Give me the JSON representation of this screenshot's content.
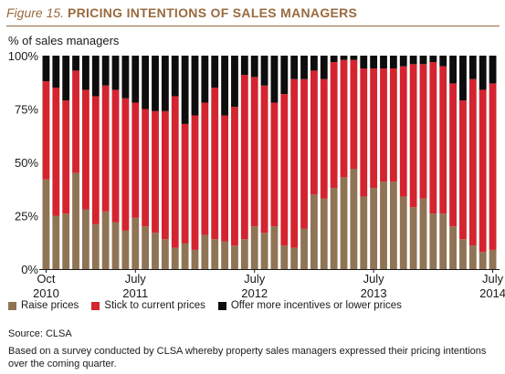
{
  "figure": {
    "number": "Figure 15.",
    "title": "PRICING INTENTIONS OF SALES MANAGERS"
  },
  "colors": {
    "title": "#9a6a3f",
    "raise": "#8f7455",
    "stick": "#d4242f",
    "offer": "#0d0d0d"
  },
  "chart_data": {
    "type": "bar",
    "stacked": true,
    "ylabel": "% of sales managers",
    "ylim": [
      0,
      100
    ],
    "yticks": [
      "0%",
      "25%",
      "50%",
      "75%",
      "100%"
    ],
    "x_labels": [
      {
        "index": 0,
        "month": "Oct",
        "year": "2010"
      },
      {
        "index": 9,
        "month": "July",
        "year": "2011"
      },
      {
        "index": 21,
        "month": "July",
        "year": "2012"
      },
      {
        "index": 33,
        "month": "July",
        "year": "2013"
      },
      {
        "index": 45,
        "month": "July",
        "year": "2014"
      }
    ],
    "series": [
      {
        "name": "Raise prices",
        "color": "#8f7455",
        "values": [
          42,
          25,
          26,
          45,
          28,
          21,
          27,
          22,
          18,
          24,
          20,
          17,
          14,
          10,
          12,
          9,
          16,
          14,
          13,
          11,
          14,
          20,
          17,
          20,
          11,
          10,
          19,
          35,
          33,
          38,
          43,
          47,
          34,
          38,
          41,
          41,
          34,
          29,
          33,
          26,
          26,
          20,
          14,
          11,
          8,
          9
        ]
      },
      {
        "name": "Stick to current prices",
        "color": "#d4242f",
        "values": [
          46,
          60,
          53,
          48,
          56,
          60,
          59,
          62,
          62,
          54,
          55,
          57,
          60,
          71,
          56,
          63,
          62,
          71,
          59,
          65,
          77,
          70,
          69,
          58,
          71,
          79,
          70,
          58,
          56,
          59,
          55,
          51,
          60,
          56,
          53,
          53,
          61,
          67,
          63,
          71,
          69,
          67,
          65,
          78,
          76,
          78
        ]
      },
      {
        "name": "Offer more incentives or lower prices",
        "color": "#0d0d0d",
        "values": [
          12,
          15,
          21,
          7,
          16,
          19,
          14,
          16,
          20,
          22,
          25,
          26,
          26,
          19,
          32,
          28,
          22,
          15,
          28,
          24,
          9,
          10,
          14,
          22,
          18,
          11,
          11,
          7,
          11,
          3,
          2,
          2,
          6,
          6,
          6,
          6,
          5,
          4,
          4,
          3,
          5,
          13,
          21,
          11,
          16,
          13
        ]
      }
    ]
  },
  "source": "Source: CLSA",
  "note": "Based on a survey conducted by CLSA whereby property sales managers expressed their pricing intentions over the coming quarter."
}
